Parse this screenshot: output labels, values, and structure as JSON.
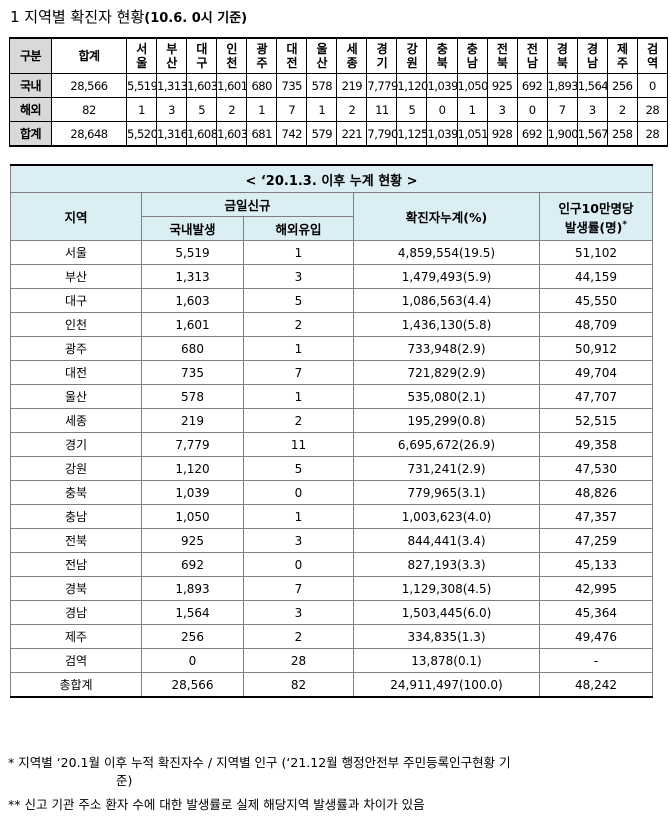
{
  "title": {
    "main": "1  지역별 확진자 현황",
    "sub": "(10.6. 0시 기준)"
  },
  "top_table": {
    "corner": "구분",
    "total_header": "합계",
    "regions": [
      [
        "서",
        "울"
      ],
      [
        "부",
        "산"
      ],
      [
        "대",
        "구"
      ],
      [
        "인",
        "천"
      ],
      [
        "광",
        "주"
      ],
      [
        "대",
        "전"
      ],
      [
        "울",
        "산"
      ],
      [
        "세",
        "종"
      ],
      [
        "경",
        "기"
      ],
      [
        "강",
        "원"
      ],
      [
        "충",
        "북"
      ],
      [
        "충",
        "남"
      ],
      [
        "전",
        "북"
      ],
      [
        "전",
        "남"
      ],
      [
        "경",
        "북"
      ],
      [
        "경",
        "남"
      ],
      [
        "제",
        "주"
      ],
      [
        "검",
        "역"
      ]
    ],
    "rows": [
      {
        "label": "국내",
        "total": "28,566",
        "values": [
          "5,519",
          "1,313",
          "1,603",
          "1,601",
          "680",
          "735",
          "578",
          "219",
          "7,779",
          "1,120",
          "1,039",
          "1,050",
          "925",
          "692",
          "1,893",
          "1,564",
          "256",
          "0"
        ]
      },
      {
        "label": "해외",
        "total": "82",
        "values": [
          "1",
          "3",
          "5",
          "2",
          "1",
          "7",
          "1",
          "2",
          "11",
          "5",
          "0",
          "1",
          "3",
          "0",
          "7",
          "3",
          "2",
          "28"
        ]
      },
      {
        "label": "합계",
        "total": "28,648",
        "values": [
          "5,520",
          "1,316",
          "1,608",
          "1,603",
          "681",
          "742",
          "579",
          "221",
          "7,790",
          "1,125",
          "1,039",
          "1,051",
          "928",
          "692",
          "1,900",
          "1,567",
          "258",
          "28"
        ]
      }
    ]
  },
  "cum_table": {
    "caption": "< ‘20.1.3. 이후 누계 현황 >",
    "headers": {
      "region": "지역",
      "today_new": "금일신규",
      "domestic": "국내발생",
      "overseas": "해외유입",
      "cumulative": "확진자누계(%)",
      "rate_line1": "인구10만명당",
      "rate_line2": "발생률(명)",
      "rate_mark": "*"
    },
    "rows": [
      {
        "region": "서울",
        "domestic": "5,519",
        "overseas": "1",
        "cumulative": "4,859,554(19.5)",
        "rate": "51,102"
      },
      {
        "region": "부산",
        "domestic": "1,313",
        "overseas": "3",
        "cumulative": "1,479,493(5.9)",
        "rate": "44,159"
      },
      {
        "region": "대구",
        "domestic": "1,603",
        "overseas": "5",
        "cumulative": "1,086,563(4.4)",
        "rate": "45,550"
      },
      {
        "region": "인천",
        "domestic": "1,601",
        "overseas": "2",
        "cumulative": "1,436,130(5.8)",
        "rate": "48,709"
      },
      {
        "region": "광주",
        "domestic": "680",
        "overseas": "1",
        "cumulative": "733,948(2.9)",
        "rate": "50,912"
      },
      {
        "region": "대전",
        "domestic": "735",
        "overseas": "7",
        "cumulative": "721,829(2.9)",
        "rate": "49,704"
      },
      {
        "region": "울산",
        "domestic": "578",
        "overseas": "1",
        "cumulative": "535,080(2.1)",
        "rate": "47,707"
      },
      {
        "region": "세종",
        "domestic": "219",
        "overseas": "2",
        "cumulative": "195,299(0.8)",
        "rate": "52,515"
      },
      {
        "region": "경기",
        "domestic": "7,779",
        "overseas": "11",
        "cumulative": "6,695,672(26.9)",
        "rate": "49,358"
      },
      {
        "region": "강원",
        "domestic": "1,120",
        "overseas": "5",
        "cumulative": "731,241(2.9)",
        "rate": "47,530"
      },
      {
        "region": "충북",
        "domestic": "1,039",
        "overseas": "0",
        "cumulative": "779,965(3.1)",
        "rate": "48,826"
      },
      {
        "region": "충남",
        "domestic": "1,050",
        "overseas": "1",
        "cumulative": "1,003,623(4.0)",
        "rate": "47,357"
      },
      {
        "region": "전북",
        "domestic": "925",
        "overseas": "3",
        "cumulative": "844,441(3.4)",
        "rate": "47,259"
      },
      {
        "region": "전남",
        "domestic": "692",
        "overseas": "0",
        "cumulative": "827,193(3.3)",
        "rate": "45,133"
      },
      {
        "region": "경북",
        "domestic": "1,893",
        "overseas": "7",
        "cumulative": "1,129,308(4.5)",
        "rate": "42,995"
      },
      {
        "region": "경남",
        "domestic": "1,564",
        "overseas": "3",
        "cumulative": "1,503,445(6.0)",
        "rate": "45,364"
      },
      {
        "region": "제주",
        "domestic": "256",
        "overseas": "2",
        "cumulative": "334,835(1.3)",
        "rate": "49,476"
      },
      {
        "region": "검역",
        "domestic": "0",
        "overseas": "28",
        "cumulative": "13,878(0.1)",
        "rate": "-"
      }
    ],
    "total": {
      "region": "총합계",
      "domestic": "28,566",
      "overseas": "82",
      "cumulative": "24,911,497(100.0)",
      "rate": "48,242"
    }
  },
  "notes": {
    "note1_line1": "* 지역별 ‘20.1월 이후 누적 확진자수 / 지역별 인구 (‘21.12월 행정안전부 주민등록인구현황 기",
    "note1_line2": "준)",
    "note2": "** 신고 기관 주소 환자 수에 대한 발생률로 실제 해당지역 발생률과 차이가 있음"
  }
}
